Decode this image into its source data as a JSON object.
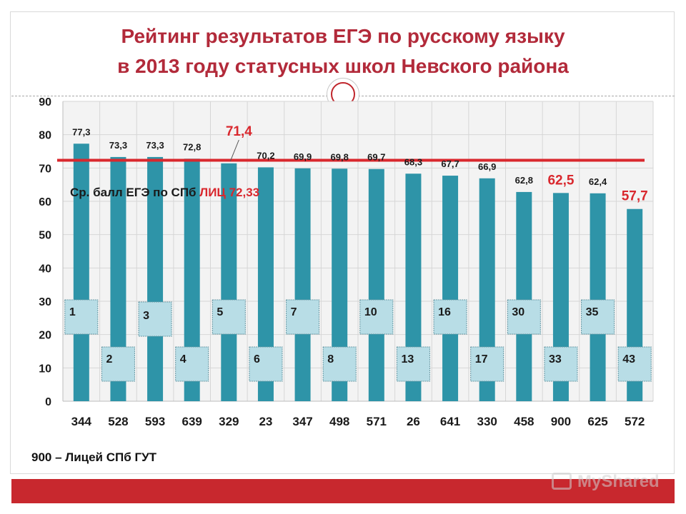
{
  "title": {
    "line1": "Рейтинг результатов ЕГЭ по русскому языку",
    "line2": "в 2013 году статусных школ Невского района"
  },
  "footnote": "900 – Лицей СПб ГУТ",
  "watermark": "MyShared",
  "colors": {
    "bar": "#2e94a8",
    "highlight_label": "#d9282e",
    "reference_line": "#d9282e",
    "rank_box_fill": "#b8dde6",
    "title": "#b22a3a",
    "footer": "#c8282e"
  },
  "chart_data": {
    "type": "bar",
    "categories": [
      "344",
      "528",
      "593",
      "639",
      "329",
      "23",
      "347",
      "498",
      "571",
      "26",
      "641",
      "330",
      "458",
      "900",
      "625",
      "572"
    ],
    "values": [
      77.3,
      73.3,
      73.3,
      72.8,
      71.4,
      70.2,
      69.9,
      69.8,
      69.7,
      68.3,
      67.7,
      66.9,
      62.8,
      62.5,
      62.4,
      57.7
    ],
    "value_labels": [
      "77,3",
      "73,3",
      "73,3",
      "72,8",
      "71,4",
      "70,2",
      "69,9",
      "69,8",
      "69,7",
      "68,3",
      "67,7",
      "66,9",
      "62,8",
      "62,5",
      "62,4",
      "57,7"
    ],
    "highlighted_categories": [
      "329",
      "900",
      "572"
    ],
    "ranks": [
      "1",
      "2",
      "3",
      "4",
      "5",
      "6",
      "7",
      "8",
      "10",
      "13",
      "16",
      "17",
      "30",
      "33",
      "35",
      "43"
    ],
    "yticks": [
      "0",
      "10",
      "20",
      "30",
      "40",
      "50",
      "60",
      "70",
      "80",
      "90"
    ],
    "ylim": [
      0,
      90
    ],
    "grid": true,
    "reference": {
      "value": 72.33,
      "label_prefix": "Ср. балл ЕГЭ по СПб ",
      "label_highlight": "ЛИЦ",
      "label_value": "72,33"
    }
  }
}
